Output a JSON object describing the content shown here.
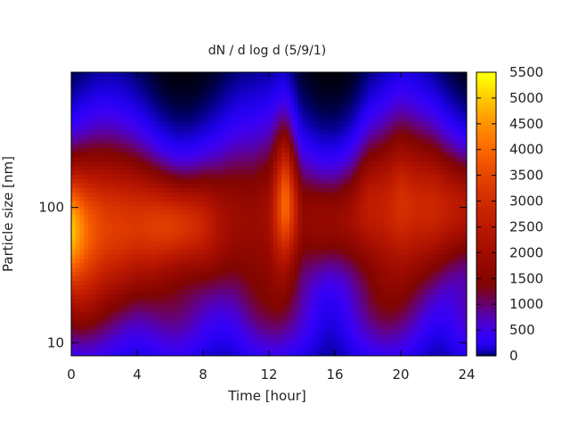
{
  "chart_data": {
    "type": "heatmap",
    "title": "dN / d log d (5/9/1)",
    "xlabel": "Time [hour]",
    "ylabel": "Particle size [nm]",
    "xlim": [
      0,
      24
    ],
    "ylim": [
      8,
      1000
    ],
    "y_scale": "log",
    "x_ticks": [
      0,
      4,
      8,
      12,
      16,
      20,
      24
    ],
    "x_tick_labels": [
      "0",
      "4",
      "8",
      "12",
      "16",
      "20",
      "24"
    ],
    "y_ticks": [
      10,
      100
    ],
    "y_tick_labels": [
      "10",
      "100"
    ],
    "colorbar": {
      "min": 0,
      "max": 5500,
      "ticks": [
        0,
        500,
        1000,
        1500,
        2000,
        2500,
        3000,
        3500,
        4000,
        4500,
        5000,
        5500
      ],
      "tick_labels": [
        "0",
        "500",
        "1000",
        "1500",
        "2000",
        "2500",
        "3000",
        "3500",
        "4000",
        "4500",
        "5000",
        "5500"
      ],
      "palette": "black-purple-red-orange-yellow (gnuplot pm3d)"
    },
    "mode_peak_by_time": {
      "time_hour": [
        0,
        1,
        2,
        3,
        4,
        5,
        6,
        7,
        8,
        9,
        10,
        11,
        12,
        13,
        14,
        15,
        16,
        17,
        18,
        19,
        20,
        21,
        22,
        23,
        24
      ],
      "peak_dNdlogd": [
        5000,
        3900,
        3400,
        3300,
        3200,
        3300,
        3300,
        3100,
        2800,
        2200,
        1900,
        1800,
        2000,
        4200,
        1700,
        1800,
        1800,
        2000,
        2600,
        2700,
        3100,
        2900,
        2900,
        2600,
        2400
      ],
      "peak_diameter_nm": [
        70,
        70,
        72,
        72,
        75,
        75,
        75,
        75,
        75,
        75,
        80,
        80,
        90,
        110,
        85,
        80,
        80,
        85,
        100,
        100,
        105,
        100,
        100,
        100,
        100
      ]
    },
    "grid": false,
    "legend": "none"
  }
}
